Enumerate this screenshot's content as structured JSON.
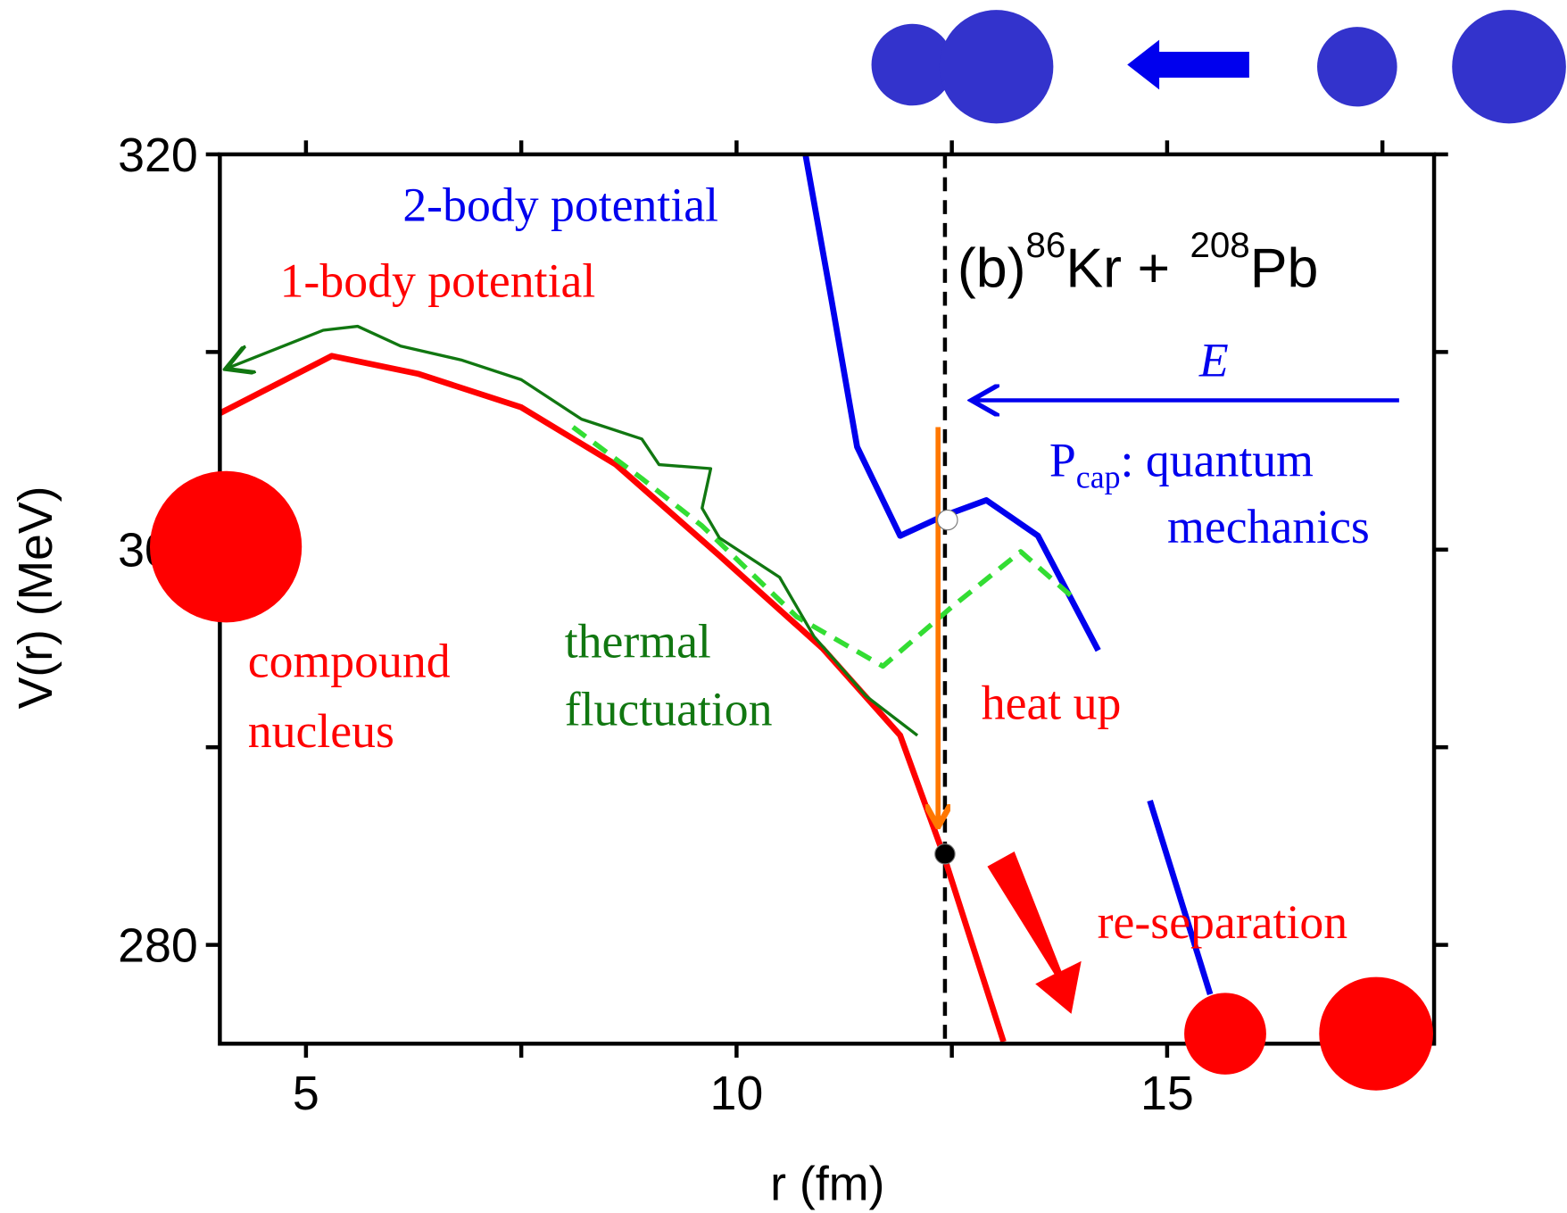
{
  "chart_data": {
    "type": "line",
    "xlabel": "r (fm)",
    "ylabel": "V(r) (MeV)",
    "xlim": [
      4,
      18.1
    ],
    "ylim": [
      275,
      320
    ],
    "xticks": [
      5,
      10,
      15
    ],
    "yticks": [
      280,
      300,
      320
    ],
    "xminorticks": [
      7.5,
      12.5,
      17.5
    ],
    "yminorticks": [
      290,
      310
    ],
    "series": [
      {
        "name": "1-body potential",
        "color": "#ff0000",
        "width": 6,
        "x": [
          4,
          5.3,
          6.3,
          7.5,
          8.6,
          9.8,
          11,
          11.9,
          12.4,
          13.1
        ],
        "values": [
          306.9,
          309.8,
          308.9,
          307.2,
          304.3,
          299.7,
          295,
          290.6,
          284.6,
          275.1
        ]
      },
      {
        "name": "2-body potential",
        "color": "#0000ee",
        "width": 6,
        "x": [
          10.8,
          11.1,
          11.4,
          11.9,
          12.4,
          12.9,
          13.5,
          14.2,
          14.5,
          14.8,
          15.5
        ],
        "values": [
          320,
          312.7,
          305.2,
          300.7,
          301.7,
          302.5,
          300.7,
          294.9,
          null,
          287.3,
          277.5
        ]
      },
      {
        "color": "#33dd33",
        "width": 5,
        "dashed": true,
        "x": [
          8.1,
          8.9,
          9.6,
          10.7,
          11.7,
          12.5,
          13.3,
          13.9
        ],
        "values": [
          306.2,
          303.6,
          301.2,
          296.6,
          294.1,
          297.1,
          299.9,
          297.6
        ]
      },
      {
        "color": "#117711",
        "width": 3,
        "arrow": true,
        "x": [
          12.1,
          11.5,
          10.9,
          10.5,
          9.8,
          9.6,
          9.7,
          9.1,
          8.9,
          8.2,
          7.5,
          6.8,
          6.1,
          5.6,
          5.2,
          4.1
        ],
        "values": [
          290.6,
          292.6,
          295.6,
          298.6,
          300.6,
          302.1,
          304.1,
          304.3,
          305.6,
          306.6,
          308.6,
          309.6,
          310.3,
          311.3,
          311.1,
          309.2
        ]
      }
    ],
    "vline_x": 12.42,
    "arrow": {
      "x": 12.34,
      "from": 306.2,
      "to": 286.1,
      "color": "#ff7700"
    },
    "points": [
      {
        "x": 12.42,
        "y": 284.6,
        "color": "#000000"
      },
      {
        "x": 12.45,
        "y": 301.5,
        "color": "#ffffff"
      }
    ],
    "annotations": {
      "panel": "(b)",
      "a1": "86",
      "n1": "Kr +",
      "a2": "208",
      "n2": "Pb",
      "energy": "E",
      "p": "P",
      "cap": "cap",
      "quantum": ": quantum",
      "mechanics": "mechanics",
      "compound": "compound",
      "nucleus": "nucleus",
      "thermal": "thermal",
      "fluctuation": "fluctuation",
      "heat": "heat up",
      "resep": "re-separation"
    }
  }
}
